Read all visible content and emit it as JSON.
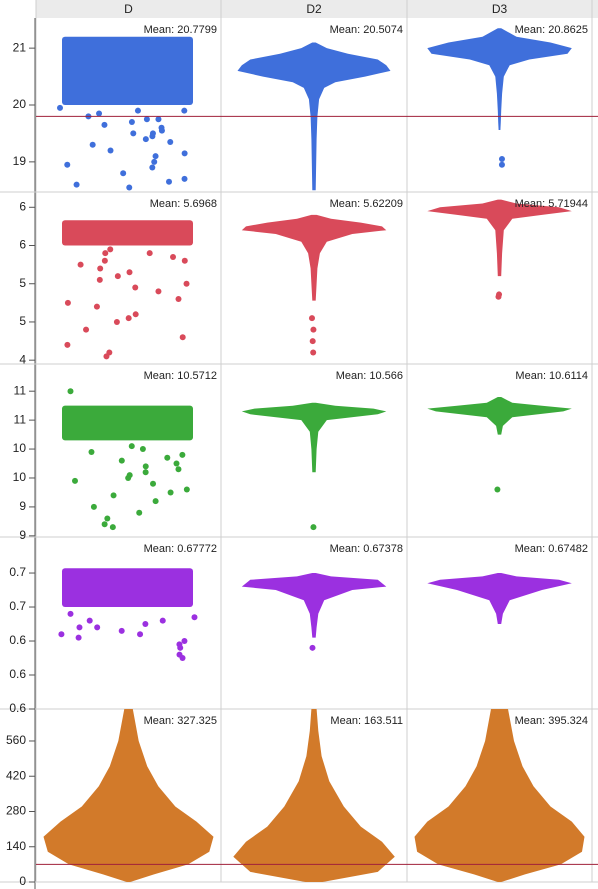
{
  "chart_data": {
    "type": "jitter-violin-grid",
    "columns": [
      "D",
      "D2",
      "D3"
    ],
    "rows": [
      {
        "color": "#3f6fdb",
        "ylim": [
          18.47,
          21.53
        ],
        "yticks": [
          21,
          20,
          19
        ],
        "reference_line": 19.8,
        "cells": [
          {
            "type": "jitter",
            "label": "Mean: 20.7799",
            "band": [
              20.0,
              21.2
            ],
            "points": [
              19.95,
              19.9,
              19.85,
              19.8,
              19.75,
              19.7,
              19.65,
              19.6,
              19.55,
              19.5,
              19.45,
              19.4,
              19.35,
              19.3,
              19.2,
              19.1,
              19.0,
              18.95,
              18.9,
              18.8,
              18.7,
              18.65,
              18.6,
              18.55,
              19.15,
              19.5,
              19.75,
              19.9
            ]
          },
          {
            "type": "violin",
            "label": "Mean: 20.5074",
            "profile_y": [
              18.5,
              19.4,
              19.8,
              20.1,
              20.3,
              20.4,
              20.5,
              20.6,
              20.7,
              20.8,
              20.9,
              21.0,
              21.1
            ],
            "profile_w": [
              0.02,
              0.03,
              0.04,
              0.06,
              0.12,
              0.25,
              0.6,
              0.9,
              0.85,
              0.75,
              0.4,
              0.15,
              0.02
            ],
            "points": []
          },
          {
            "type": "violin",
            "label": "Mean: 20.8625",
            "profile_y": [
              19.56,
              19.7,
              19.9,
              20.2,
              20.5,
              20.7,
              20.8,
              20.9,
              21.0,
              21.1,
              21.2,
              21.35
            ],
            "profile_w": [
              0.01,
              0.015,
              0.02,
              0.03,
              0.05,
              0.12,
              0.35,
              0.8,
              0.85,
              0.6,
              0.2,
              0.02
            ],
            "points": [
              19.05,
              18.95
            ]
          }
        ]
      },
      {
        "color": "#d94a5a",
        "ylim": [
          4.45,
          6.7
        ],
        "yticks": [
          {
            "value": 6.5,
            "label": "6"
          },
          6,
          {
            "value": 5.5,
            "label": "5"
          },
          5,
          {
            "value": 4.5,
            "label": "4"
          }
        ],
        "cells": [
          {
            "type": "jitter",
            "label": "Mean: 5.6968",
            "band": [
              6.0,
              6.33
            ],
            "points": [
              5.95,
              5.9,
              5.85,
              5.8,
              5.75,
              5.7,
              5.6,
              5.55,
              5.5,
              5.45,
              5.4,
              5.3,
              5.25,
              5.2,
              5.1,
              5.05,
              5.0,
              4.9,
              4.8,
              4.7,
              4.6,
              4.55,
              5.9,
              5.8,
              5.65
            ]
          },
          {
            "type": "violin",
            "label": "Mean: 5.62209",
            "profile_y": [
              5.28,
              5.5,
              5.7,
              5.9,
              6.05,
              6.15,
              6.2,
              6.25,
              6.3,
              6.35,
              6.4
            ],
            "profile_w": [
              0.02,
              0.03,
              0.04,
              0.07,
              0.15,
              0.45,
              0.85,
              0.8,
              0.55,
              0.2,
              0.03
            ],
            "points": [
              5.05,
              4.9,
              4.75,
              4.6
            ]
          },
          {
            "type": "violin",
            "label": "Mean: 5.71944",
            "profile_y": [
              5.6,
              5.9,
              6.2,
              6.35,
              6.4,
              6.45,
              6.5,
              6.55,
              6.6
            ],
            "profile_w": [
              0.02,
              0.03,
              0.05,
              0.15,
              0.5,
              0.85,
              0.7,
              0.2,
              0.02
            ],
            "points": [
              5.36,
              5.33
            ]
          }
        ]
      },
      {
        "color": "#3baa3b",
        "ylim": [
          8.98,
          11.97
        ],
        "yticks": [
          {
            "value": 11.5,
            "label": "11"
          },
          11,
          {
            "value": 10.5,
            "label": "10"
          },
          10,
          {
            "value": 9.5,
            "label": "9"
          },
          9
        ],
        "cells": [
          {
            "type": "jitter",
            "label": "Mean: 10.5712",
            "band": [
              10.65,
              11.25
            ],
            "points": [
              10.55,
              10.5,
              10.45,
              10.4,
              10.3,
              10.25,
              10.2,
              10.1,
              10.05,
              10.0,
              9.9,
              9.8,
              9.7,
              9.6,
              9.5,
              9.4,
              9.3,
              9.2,
              9.15,
              10.35,
              10.15,
              9.95,
              9.75,
              11.5
            ]
          },
          {
            "type": "violin",
            "label": "Mean: 10.566",
            "profile_y": [
              10.1,
              10.5,
              10.8,
              11.0,
              11.1,
              11.15,
              11.2,
              11.25,
              11.3
            ],
            "profile_w": [
              0.02,
              0.03,
              0.05,
              0.15,
              0.75,
              0.85,
              0.7,
              0.25,
              0.02
            ],
            "points": [
              9.15
            ]
          },
          {
            "type": "violin",
            "label": "Mean: 10.6114",
            "profile_y": [
              10.75,
              10.9,
              11.05,
              11.15,
              11.2,
              11.25,
              11.3,
              11.4
            ],
            "profile_w": [
              0.02,
              0.04,
              0.15,
              0.75,
              0.85,
              0.5,
              0.15,
              0.02
            ],
            "points": [
              9.8
            ]
          }
        ]
      },
      {
        "color": "#9b30e0",
        "ylim": [
          0.55,
          0.803
        ],
        "yticks": [
          {
            "value": 0.75,
            "label": "0.7"
          },
          0.7,
          {
            "value": 0.65,
            "label": "0.6"
          },
          0.6,
          {
            "value": 0.55,
            "label": "0.6"
          }
        ],
        "cells": [
          {
            "type": "jitter",
            "label": "Mean: 0.67772",
            "band": [
              0.7,
              0.757
            ],
            "points": [
              0.69,
              0.685,
              0.68,
              0.675,
              0.67,
              0.665,
              0.66,
              0.655,
              0.65,
              0.645,
              0.64,
              0.63,
              0.625,
              0.68,
              0.67,
              0.66
            ]
          },
          {
            "type": "violin",
            "label": "Mean: 0.67378",
            "profile_y": [
              0.655,
              0.67,
              0.69,
              0.71,
              0.725,
              0.73,
              0.74,
              0.745,
              0.75
            ],
            "profile_w": [
              0.02,
              0.03,
              0.05,
              0.12,
              0.45,
              0.85,
              0.75,
              0.2,
              0.02
            ],
            "points": [
              0.64
            ]
          },
          {
            "type": "violin",
            "label": "Mean: 0.67482",
            "profile_y": [
              0.675,
              0.69,
              0.71,
              0.725,
              0.735,
              0.74,
              0.745,
              0.75
            ],
            "profile_w": [
              0.02,
              0.04,
              0.12,
              0.5,
              0.85,
              0.7,
              0.2,
              0.02
            ],
            "points": []
          }
        ]
      },
      {
        "color": "#d27a2a",
        "ylim": [
          0,
          687
        ],
        "yticks": [
          560,
          420,
          280,
          140,
          0
        ],
        "reference_line": 70,
        "cells": [
          {
            "type": "violin",
            "label": "Mean: 327.325",
            "profile_y": [
              0,
              30,
              70,
              120,
              180,
              240,
              300,
              380,
              460,
              560,
              687
            ],
            "profile_w": [
              0.02,
              0.3,
              0.7,
              0.95,
              1.0,
              0.8,
              0.55,
              0.35,
              0.22,
              0.12,
              0.05
            ],
            "points": []
          },
          {
            "type": "violin",
            "label": "Mean: 163.511",
            "profile_y": [
              0,
              40,
              100,
              160,
              220,
              300,
              400,
              500,
              600,
              687
            ],
            "profile_w": [
              0.1,
              0.75,
              0.95,
              0.8,
              0.55,
              0.35,
              0.18,
              0.09,
              0.05,
              0.03
            ],
            "points": []
          },
          {
            "type": "violin",
            "label": "Mean: 395.324",
            "profile_y": [
              0,
              30,
              70,
              120,
              180,
              240,
              300,
              380,
              460,
              560,
              687
            ],
            "profile_w": [
              0.02,
              0.3,
              0.72,
              0.97,
              1.0,
              0.85,
              0.6,
              0.4,
              0.27,
              0.17,
              0.1
            ],
            "points": []
          }
        ]
      }
    ]
  }
}
